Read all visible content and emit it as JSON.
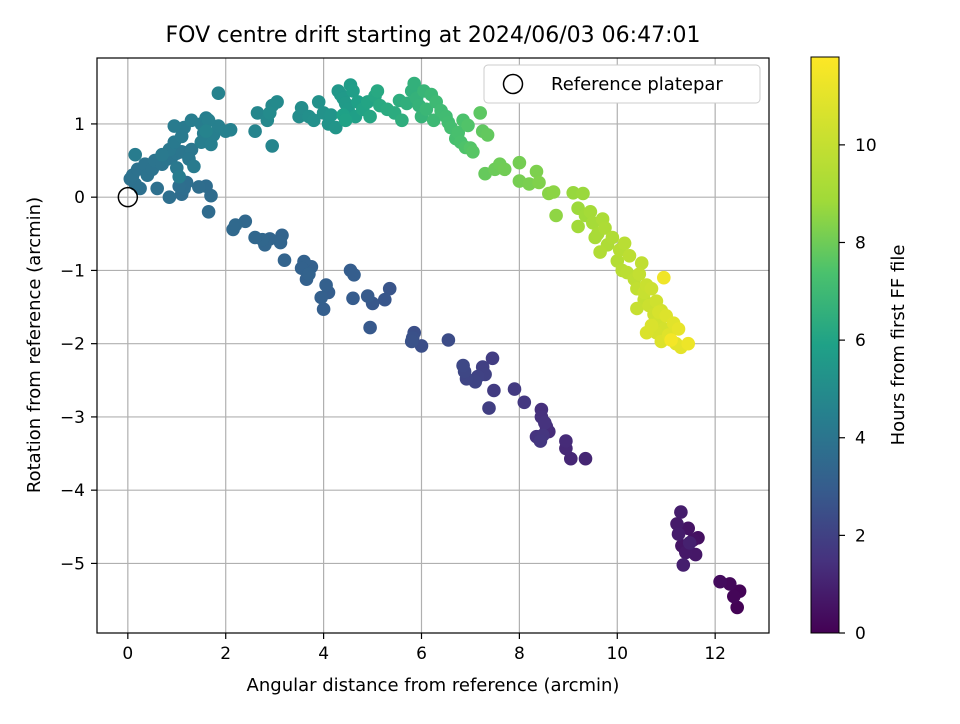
{
  "chart_data": {
    "type": "scatter",
    "title": "FOV centre drift starting at 2024/06/03 06:47:01",
    "xlabel": "Angular distance from reference (arcmin)",
    "ylabel": "Rotation from reference (arcmin)",
    "xlim": [
      -0.63,
      13.1
    ],
    "ylim": [
      -5.95,
      1.9
    ],
    "xticks": [
      0,
      2,
      4,
      6,
      8,
      10,
      12
    ],
    "yticks": [
      -5,
      -4,
      -3,
      -2,
      -1,
      0,
      1
    ],
    "grid": true,
    "colormap": "viridis",
    "colorbar": {
      "label": "Hours from first FF file",
      "range": [
        0,
        11.8
      ],
      "ticks": [
        0,
        2,
        4,
        6,
        8,
        10
      ]
    },
    "legend": {
      "placement": "top-right",
      "entries": [
        {
          "label": "Reference platepar",
          "marker": "open-circle"
        }
      ]
    },
    "reference_point": {
      "x": 0,
      "y": 0
    },
    "points_columns": [
      "x",
      "y",
      "hours"
    ],
    "points": [
      [
        12.45,
        -5.6,
        0.05
      ],
      [
        12.5,
        -5.38,
        0.1
      ],
      [
        12.38,
        -5.45,
        0.15
      ],
      [
        12.3,
        -5.28,
        0.2
      ],
      [
        12.1,
        -5.25,
        0.3
      ],
      [
        11.65,
        -4.65,
        0.45
      ],
      [
        11.55,
        -4.68,
        0.5
      ],
      [
        11.45,
        -4.52,
        0.55
      ],
      [
        11.32,
        -4.76,
        0.6
      ],
      [
        11.6,
        -4.88,
        0.65
      ],
      [
        11.4,
        -4.85,
        0.7
      ],
      [
        11.22,
        -4.46,
        0.75
      ],
      [
        11.25,
        -4.6,
        0.8
      ],
      [
        11.3,
        -4.3,
        0.85
      ],
      [
        11.35,
        -5.02,
        0.9
      ],
      [
        11.48,
        -4.72,
        0.95
      ],
      [
        9.35,
        -3.57,
        1.1
      ],
      [
        9.05,
        -3.57,
        1.15
      ],
      [
        8.95,
        -3.43,
        1.2
      ],
      [
        8.95,
        -3.33,
        1.25
      ],
      [
        8.6,
        -3.2,
        1.3
      ],
      [
        8.55,
        -3.13,
        1.35
      ],
      [
        8.45,
        -2.9,
        1.4
      ],
      [
        8.45,
        -3.0,
        1.45
      ],
      [
        8.52,
        -3.08,
        1.5
      ],
      [
        8.35,
        -3.27,
        1.55
      ],
      [
        8.48,
        -3.25,
        1.6
      ],
      [
        8.43,
        -3.33,
        1.65
      ],
      [
        8.1,
        -2.8,
        1.7
      ],
      [
        7.9,
        -2.62,
        1.75
      ],
      [
        7.48,
        -2.64,
        1.8
      ],
      [
        7.45,
        -2.2,
        1.85
      ],
      [
        7.38,
        -2.88,
        1.9
      ],
      [
        7.25,
        -2.32,
        1.95
      ],
      [
        7.3,
        -2.42,
        2.0
      ],
      [
        7.15,
        -2.45,
        2.05
      ],
      [
        7.1,
        -2.52,
        2.1
      ],
      [
        6.92,
        -2.48,
        2.15
      ],
      [
        6.88,
        -2.38,
        2.2
      ],
      [
        6.85,
        -2.3,
        2.25
      ],
      [
        6.55,
        -1.95,
        2.4
      ],
      [
        6.0,
        -2.03,
        2.45
      ],
      [
        5.85,
        -1.85,
        2.5
      ],
      [
        5.82,
        -1.92,
        2.55
      ],
      [
        5.8,
        -1.97,
        2.6
      ],
      [
        5.35,
        -1.25,
        2.7
      ],
      [
        5.25,
        -1.4,
        2.75
      ],
      [
        5.0,
        -1.45,
        2.8
      ],
      [
        4.95,
        -1.78,
        2.85
      ],
      [
        4.9,
        -1.35,
        2.9
      ],
      [
        4.6,
        -1.38,
        2.95
      ],
      [
        4.55,
        -1.0,
        3.0
      ],
      [
        4.62,
        -1.06,
        3.02
      ],
      [
        4.1,
        -1.3,
        3.05
      ],
      [
        4.0,
        -1.53,
        3.08
      ],
      [
        3.95,
        -1.37,
        3.1
      ],
      [
        4.05,
        -1.2,
        3.12
      ],
      [
        3.65,
        -1.12,
        3.15
      ],
      [
        3.75,
        -0.95,
        3.18
      ],
      [
        3.6,
        -0.88,
        3.2
      ],
      [
        3.55,
        -0.97,
        3.22
      ],
      [
        3.7,
        -1.05,
        3.25
      ],
      [
        3.2,
        -0.86,
        3.28
      ],
      [
        3.15,
        -0.52,
        3.3
      ],
      [
        3.12,
        -0.62,
        3.32
      ],
      [
        2.9,
        -0.57,
        3.35
      ],
      [
        2.8,
        -0.65,
        3.38
      ],
      [
        2.75,
        -0.58,
        3.4
      ],
      [
        2.6,
        -0.55,
        3.42
      ],
      [
        2.4,
        -0.33,
        3.45
      ],
      [
        2.15,
        -0.44,
        3.48
      ],
      [
        2.2,
        -0.38,
        3.5
      ],
      [
        1.65,
        -0.2,
        3.6
      ],
      [
        1.7,
        0.02,
        3.62
      ],
      [
        1.6,
        0.15,
        3.64
      ],
      [
        1.45,
        0.14,
        3.66
      ],
      [
        1.1,
        0.04,
        3.68
      ],
      [
        1.15,
        0.12,
        3.7
      ],
      [
        1.2,
        0.2,
        3.72
      ],
      [
        1.05,
        0.15,
        3.74
      ],
      [
        0.85,
        0.0,
        3.76
      ],
      [
        0.6,
        0.12,
        3.78
      ],
      [
        0.25,
        0.12,
        3.8
      ],
      [
        0.15,
        0.18,
        3.82
      ],
      [
        0.05,
        0.25,
        3.84
      ],
      [
        0.1,
        0.3,
        3.86
      ],
      [
        0.2,
        0.38,
        3.88
      ],
      [
        0.35,
        0.45,
        3.9
      ],
      [
        0.4,
        0.3,
        3.92
      ],
      [
        0.5,
        0.38,
        3.94
      ],
      [
        0.55,
        0.5,
        3.96
      ],
      [
        0.7,
        0.45,
        3.98
      ],
      [
        0.8,
        0.52,
        4.0
      ],
      [
        0.9,
        0.55,
        4.02
      ],
      [
        1.0,
        0.6,
        4.04
      ],
      [
        1.1,
        0.62,
        4.06
      ],
      [
        1.3,
        0.65,
        4.08
      ],
      [
        1.25,
        0.52,
        4.1
      ],
      [
        1.0,
        0.4,
        4.12
      ],
      [
        0.85,
        0.65,
        4.14
      ],
      [
        0.7,
        0.58,
        4.16
      ],
      [
        0.95,
        0.75,
        4.18
      ],
      [
        1.1,
        0.83,
        4.2
      ],
      [
        1.15,
        0.95,
        4.22
      ],
      [
        0.95,
        0.97,
        4.24
      ],
      [
        1.35,
        0.42,
        4.26
      ],
      [
        1.05,
        0.28,
        4.28
      ],
      [
        0.15,
        0.58,
        4.3
      ],
      [
        1.3,
        1.05,
        4.32
      ],
      [
        1.5,
        1.0,
        4.34
      ],
      [
        1.55,
        0.87,
        4.36
      ],
      [
        1.6,
        1.08,
        4.38
      ],
      [
        1.5,
        0.75,
        4.4
      ],
      [
        1.7,
        0.72,
        4.42
      ],
      [
        1.75,
        0.85,
        4.44
      ],
      [
        1.85,
        0.97,
        4.46
      ],
      [
        1.65,
        1.05,
        4.48
      ],
      [
        2.0,
        0.9,
        4.5
      ],
      [
        2.1,
        0.92,
        4.52
      ],
      [
        1.85,
        1.42,
        4.55
      ],
      [
        1.6,
        0.9,
        4.58
      ],
      [
        2.6,
        0.9,
        4.65
      ],
      [
        2.95,
        0.7,
        4.7
      ],
      [
        2.65,
        1.15,
        4.75
      ],
      [
        2.85,
        1.05,
        4.8
      ],
      [
        2.95,
        1.25,
        4.85
      ],
      [
        3.05,
        1.3,
        4.9
      ],
      [
        2.9,
        1.15,
        4.95
      ],
      [
        3.5,
        1.1,
        5.0
      ],
      [
        3.55,
        1.22,
        5.05
      ],
      [
        3.7,
        1.1,
        5.1
      ],
      [
        3.8,
        1.05,
        5.15
      ],
      [
        3.9,
        1.3,
        5.2
      ],
      [
        4.0,
        1.15,
        5.25
      ],
      [
        4.1,
        1.0,
        5.3
      ],
      [
        4.15,
        1.12,
        5.35
      ],
      [
        4.25,
        0.95,
        5.4
      ],
      [
        4.3,
        1.45,
        5.45
      ],
      [
        4.35,
        1.4,
        5.5
      ],
      [
        4.4,
        1.35,
        5.55
      ],
      [
        4.45,
        1.28,
        5.6
      ],
      [
        4.5,
        1.2,
        5.65
      ],
      [
        4.55,
        1.53,
        5.7
      ],
      [
        4.6,
        1.45,
        5.75
      ],
      [
        4.65,
        1.1,
        5.8
      ],
      [
        4.7,
        1.3,
        5.85
      ],
      [
        4.4,
        1.12,
        5.9
      ],
      [
        4.45,
        1.05,
        5.95
      ],
      [
        4.8,
        1.2,
        6.0
      ],
      [
        4.9,
        1.3,
        6.05
      ],
      [
        4.95,
        1.1,
        6.1
      ],
      [
        5.05,
        1.38,
        6.15
      ],
      [
        5.1,
        1.45,
        6.2
      ],
      [
        5.15,
        1.25,
        6.25
      ],
      [
        5.3,
        1.2,
        6.3
      ],
      [
        5.45,
        1.15,
        6.35
      ],
      [
        5.55,
        1.32,
        6.4
      ],
      [
        5.6,
        1.05,
        6.45
      ],
      [
        5.7,
        1.28,
        6.5
      ],
      [
        5.8,
        1.45,
        6.55
      ],
      [
        5.85,
        1.55,
        6.6
      ],
      [
        5.9,
        1.35,
        6.65
      ],
      [
        5.95,
        1.25,
        6.7
      ],
      [
        6.0,
        1.1,
        6.75
      ],
      [
        6.05,
        1.45,
        6.8
      ],
      [
        6.1,
        1.2,
        6.85
      ],
      [
        6.2,
        1.4,
        6.9
      ],
      [
        6.25,
        1.05,
        6.95
      ],
      [
        6.3,
        1.3,
        7.0
      ],
      [
        6.4,
        1.18,
        7.05
      ],
      [
        6.5,
        1.1,
        7.1
      ],
      [
        6.55,
        1.02,
        7.15
      ],
      [
        6.6,
        0.95,
        7.2
      ],
      [
        6.7,
        0.8,
        7.25
      ],
      [
        6.75,
        0.88,
        7.3
      ],
      [
        6.8,
        0.75,
        7.35
      ],
      [
        6.85,
        1.05,
        7.4
      ],
      [
        6.9,
        0.68,
        7.45
      ],
      [
        6.95,
        0.98,
        7.5
      ],
      [
        7.0,
        0.67,
        7.55
      ],
      [
        7.05,
        0.62,
        7.6
      ],
      [
        7.2,
        1.15,
        7.7
      ],
      [
        7.25,
        0.9,
        7.75
      ],
      [
        7.35,
        0.85,
        7.8
      ],
      [
        7.3,
        0.32,
        7.85
      ],
      [
        7.5,
        0.38,
        7.95
      ],
      [
        7.6,
        0.45,
        8.0
      ],
      [
        7.7,
        0.38,
        8.05
      ],
      [
        8.0,
        0.47,
        8.1
      ],
      [
        8.0,
        0.22,
        8.15
      ],
      [
        8.2,
        0.18,
        8.2
      ],
      [
        8.35,
        0.35,
        8.25
      ],
      [
        8.4,
        0.2,
        8.3
      ],
      [
        8.6,
        0.05,
        8.45
      ],
      [
        8.7,
        0.07,
        8.5
      ],
      [
        8.75,
        -0.25,
        8.55
      ],
      [
        9.1,
        0.06,
        8.7
      ],
      [
        9.3,
        0.05,
        8.75
      ],
      [
        9.2,
        -0.15,
        8.8
      ],
      [
        9.35,
        -0.25,
        8.85
      ],
      [
        9.2,
        -0.4,
        8.9
      ],
      [
        9.45,
        -0.2,
        9.0
      ],
      [
        9.5,
        -0.35,
        9.05
      ],
      [
        9.55,
        -0.55,
        9.1
      ],
      [
        9.6,
        -0.5,
        9.15
      ],
      [
        9.7,
        -0.3,
        9.2
      ],
      [
        9.75,
        -0.42,
        9.25
      ],
      [
        9.8,
        -0.65,
        9.3
      ],
      [
        9.9,
        -0.55,
        9.35
      ],
      [
        9.65,
        -0.75,
        9.4
      ],
      [
        10.0,
        -0.87,
        9.5
      ],
      [
        10.05,
        -0.72,
        9.55
      ],
      [
        10.1,
        -1.0,
        9.6
      ],
      [
        10.15,
        -0.63,
        9.65
      ],
      [
        10.2,
        -1.03,
        9.7
      ],
      [
        10.25,
        -0.8,
        9.75
      ],
      [
        10.35,
        -1.12,
        9.8
      ],
      [
        10.5,
        -0.9,
        9.85
      ],
      [
        10.4,
        -1.25,
        9.9
      ],
      [
        10.45,
        -1.05,
        9.95
      ],
      [
        10.55,
        -1.4,
        10.0
      ],
      [
        10.4,
        -1.52,
        10.05
      ],
      [
        10.55,
        -1.3,
        10.1
      ],
      [
        10.6,
        -1.2,
        10.15
      ],
      [
        10.65,
        -1.48,
        10.2
      ],
      [
        10.7,
        -1.25,
        10.25
      ],
      [
        10.75,
        -1.6,
        10.3
      ],
      [
        10.8,
        -1.42,
        10.35
      ],
      [
        10.85,
        -1.7,
        10.4
      ],
      [
        10.9,
        -1.55,
        10.45
      ],
      [
        10.95,
        -1.8,
        10.5
      ],
      [
        10.8,
        -1.85,
        10.55
      ],
      [
        10.85,
        -1.57,
        10.6
      ],
      [
        10.7,
        -1.75,
        10.65
      ],
      [
        10.6,
        -1.85,
        10.7
      ],
      [
        10.9,
        -1.97,
        10.75
      ],
      [
        11.0,
        -1.62,
        10.8
      ],
      [
        11.05,
        -1.88,
        10.85
      ],
      [
        11.15,
        -1.72,
        10.9
      ],
      [
        11.2,
        -2.0,
        10.95
      ],
      [
        11.3,
        -2.05,
        11.0
      ],
      [
        11.25,
        -1.8,
        11.1
      ],
      [
        11.45,
        -2.0,
        11.3
      ],
      [
        10.95,
        -1.1,
        11.4
      ],
      [
        11.1,
        -1.95,
        11.5
      ]
    ]
  }
}
